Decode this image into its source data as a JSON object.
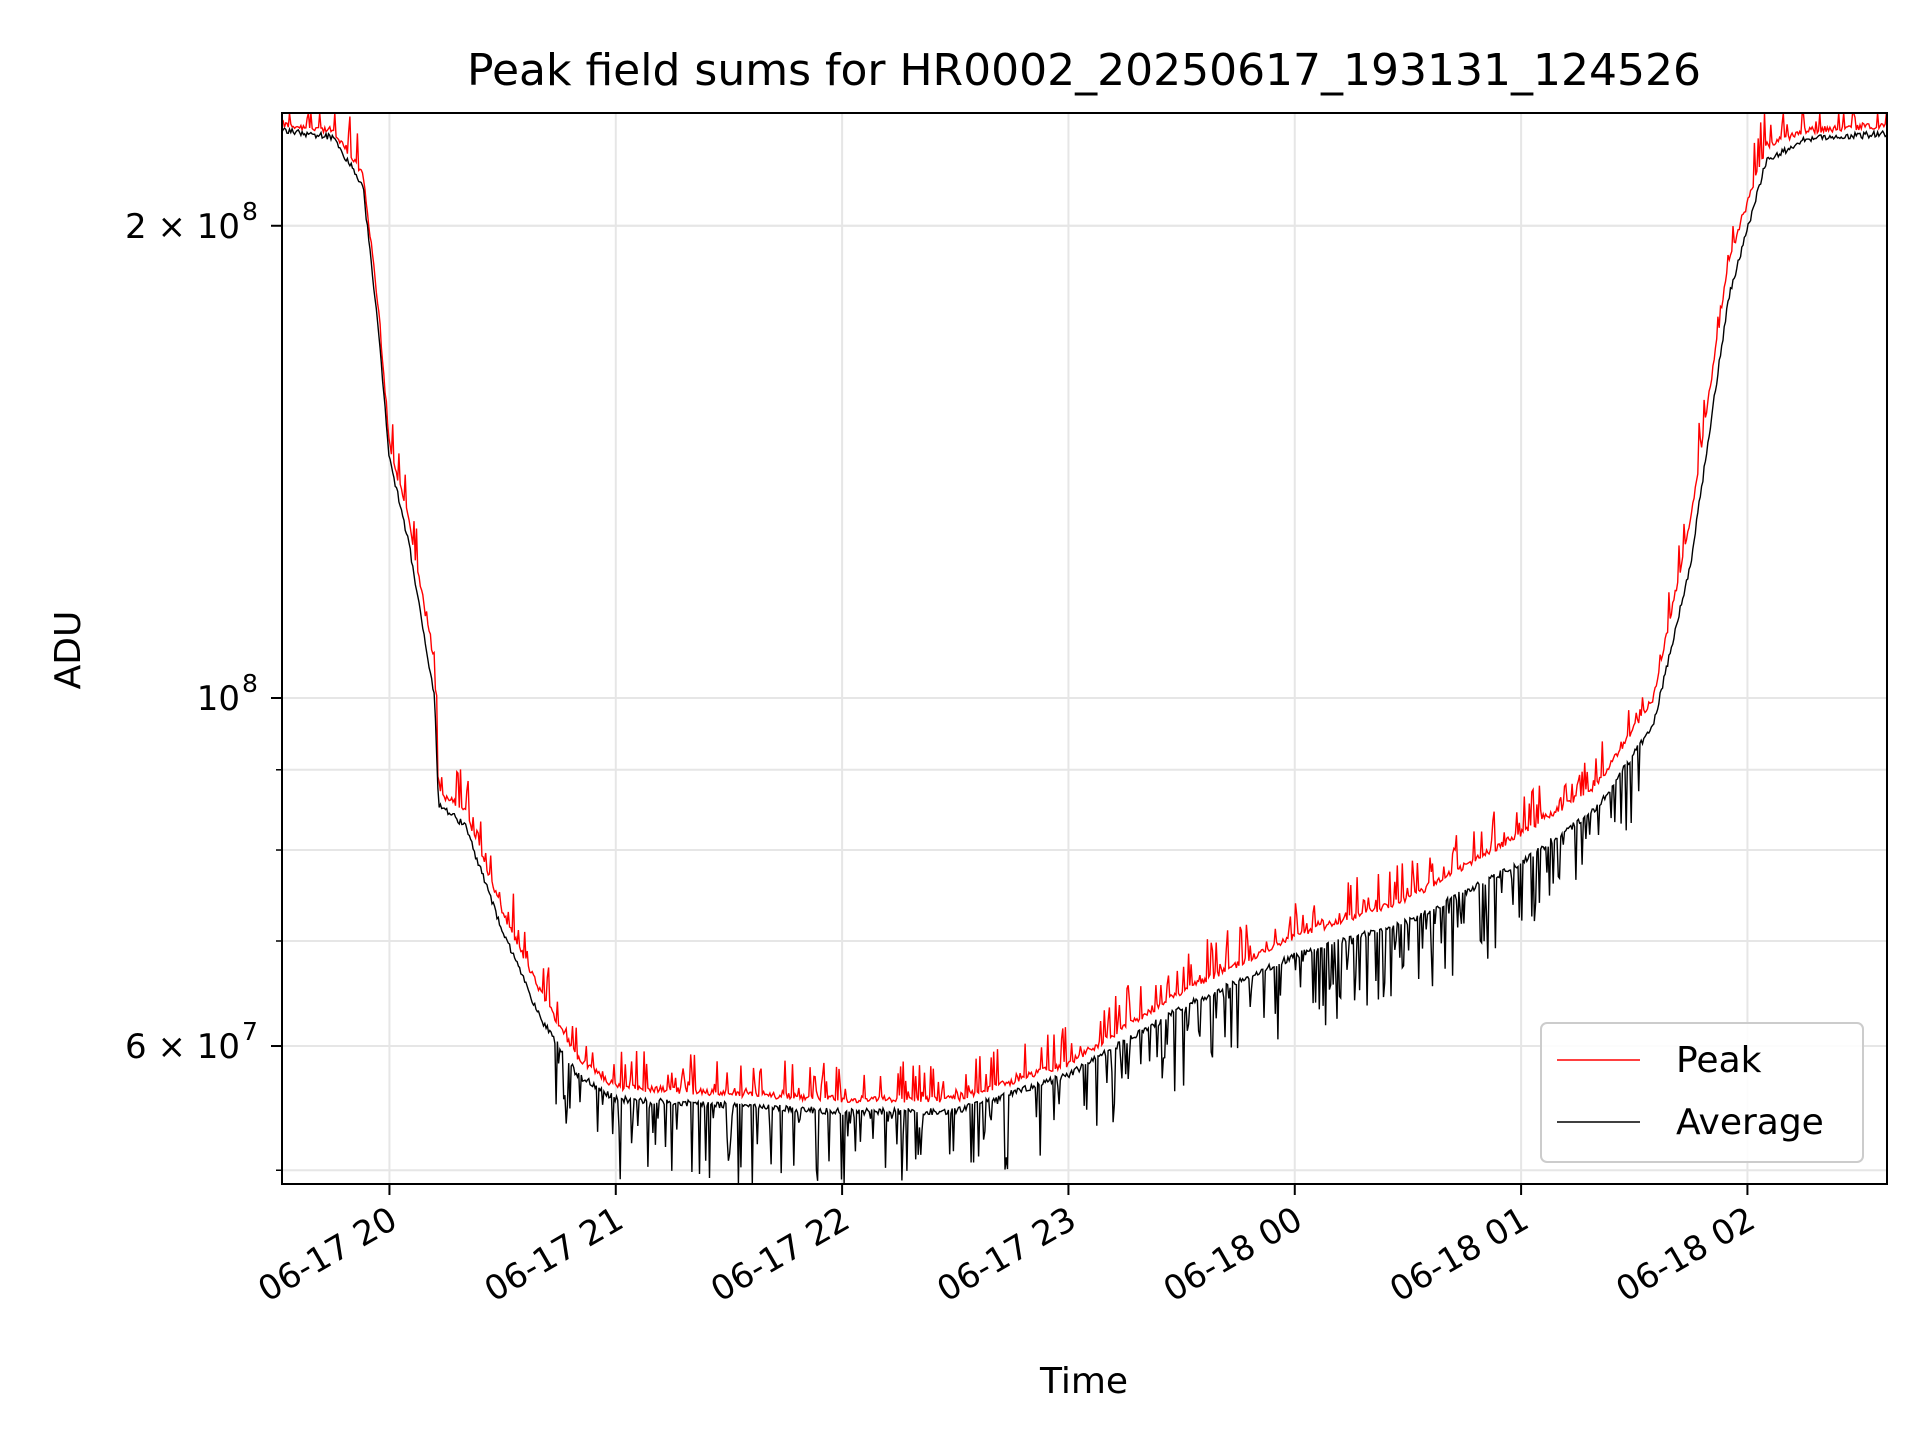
{
  "chart_data": {
    "type": "line",
    "title": "Peak field sums for HR0002_20250617_193131_124526",
    "xlabel": "Time",
    "ylabel": "ADU",
    "yscale": "log",
    "xlim": [
      "2025-06-17 19:31:31",
      "2025-06-18 02:37:00"
    ],
    "ylim": [
      49000000,
      236000000
    ],
    "x_ticks": [
      {
        "t": "2025-06-17 20:00",
        "label": "06-17 20"
      },
      {
        "t": "2025-06-17 21:00",
        "label": "06-17 21"
      },
      {
        "t": "2025-06-17 22:00",
        "label": "06-17 22"
      },
      {
        "t": "2025-06-17 23:00",
        "label": "06-17 23"
      },
      {
        "t": "2025-06-18 00:00",
        "label": "06-18 00"
      },
      {
        "t": "2025-06-18 01:00",
        "label": "06-18 01"
      },
      {
        "t": "2025-06-18 02:00",
        "label": "06-18 02"
      }
    ],
    "y_major_ticks": [
      {
        "value": 200000000,
        "mantissa": "2",
        "exponent": "8"
      },
      {
        "value": 100000000,
        "mantissa": "",
        "exponent": "8"
      },
      {
        "value": 60000000,
        "mantissa": "6",
        "exponent": "7"
      }
    ],
    "y_minor_ticks": [
      200000000,
      90000000,
      80000000,
      70000000,
      60000000,
      50000000
    ],
    "grid": true,
    "legend_position": "lower-right",
    "series": [
      {
        "name": "Peak",
        "color": "#ff0000",
        "keypoints": [
          [
            "2025-06-17 19:31:31",
            232000000
          ],
          [
            "2025-06-17 19:45:00",
            230000000
          ],
          [
            "2025-06-17 19:53:00",
            216000000
          ],
          [
            "2025-06-17 19:57:00",
            178000000
          ],
          [
            "2025-06-17 20:00:00",
            145000000
          ],
          [
            "2025-06-17 20:05:00",
            130000000
          ],
          [
            "2025-06-17 20:12:00",
            105000000
          ],
          [
            "2025-06-17 20:13:00",
            87000000
          ],
          [
            "2025-06-17 20:20:00",
            85000000
          ],
          [
            "2025-06-17 20:30:00",
            73000000
          ],
          [
            "2025-06-17 20:40:00",
            65000000
          ],
          [
            "2025-06-17 20:50:00",
            59000000
          ],
          [
            "2025-06-17 21:00:00",
            56500000
          ],
          [
            "2025-06-17 21:30:00",
            56000000
          ],
          [
            "2025-06-17 22:00:00",
            55500000
          ],
          [
            "2025-06-17 22:30:00",
            55500000
          ],
          [
            "2025-06-17 23:00:00",
            58500000
          ],
          [
            "2025-06-17 23:30:00",
            65000000
          ],
          [
            "2025-06-18 00:00:00",
            70500000
          ],
          [
            "2025-06-18 00:30:00",
            74500000
          ],
          [
            "2025-06-18 01:00:00",
            82000000
          ],
          [
            "2025-06-18 01:20:00",
            88000000
          ],
          [
            "2025-06-18 01:35:00",
            100000000
          ],
          [
            "2025-06-18 01:45:00",
            130000000
          ],
          [
            "2025-06-18 01:55:00",
            190000000
          ],
          [
            "2025-06-18 02:05:00",
            225000000
          ],
          [
            "2025-06-18 02:15:00",
            230000000
          ],
          [
            "2025-06-18 02:37:00",
            232000000
          ]
        ]
      },
      {
        "name": "Average",
        "color": "#000000",
        "keypoints": [
          [
            "2025-06-17 19:31:31",
            230000000
          ],
          [
            "2025-06-17 19:45:00",
            228000000
          ],
          [
            "2025-06-17 19:53:00",
            212000000
          ],
          [
            "2025-06-17 19:57:00",
            172000000
          ],
          [
            "2025-06-17 20:00:00",
            142000000
          ],
          [
            "2025-06-17 20:05:00",
            126000000
          ],
          [
            "2025-06-17 20:12:00",
            100000000
          ],
          [
            "2025-06-17 20:13:00",
            85500000
          ],
          [
            "2025-06-17 20:20:00",
            83000000
          ],
          [
            "2025-06-17 20:30:00",
            71000000
          ],
          [
            "2025-06-17 20:40:00",
            62500000
          ],
          [
            "2025-06-17 20:50:00",
            57500000
          ],
          [
            "2025-06-17 21:00:00",
            55500000
          ],
          [
            "2025-06-17 21:30:00",
            55000000
          ],
          [
            "2025-06-17 22:00:00",
            54500000
          ],
          [
            "2025-06-17 22:30:00",
            54500000
          ],
          [
            "2025-06-17 23:00:00",
            57500000
          ],
          [
            "2025-06-17 23:30:00",
            63500000
          ],
          [
            "2025-06-18 00:00:00",
            68500000
          ],
          [
            "2025-06-18 00:30:00",
            72000000
          ],
          [
            "2025-06-18 01:00:00",
            78500000
          ],
          [
            "2025-06-18 01:20:00",
            85000000
          ],
          [
            "2025-06-18 01:35:00",
            96000000
          ],
          [
            "2025-06-18 01:45:00",
            122000000
          ],
          [
            "2025-06-18 01:55:00",
            180000000
          ],
          [
            "2025-06-18 02:05:00",
            220000000
          ],
          [
            "2025-06-18 02:15:00",
            227000000
          ],
          [
            "2025-06-18 02:37:00",
            229000000
          ]
        ]
      }
    ]
  }
}
